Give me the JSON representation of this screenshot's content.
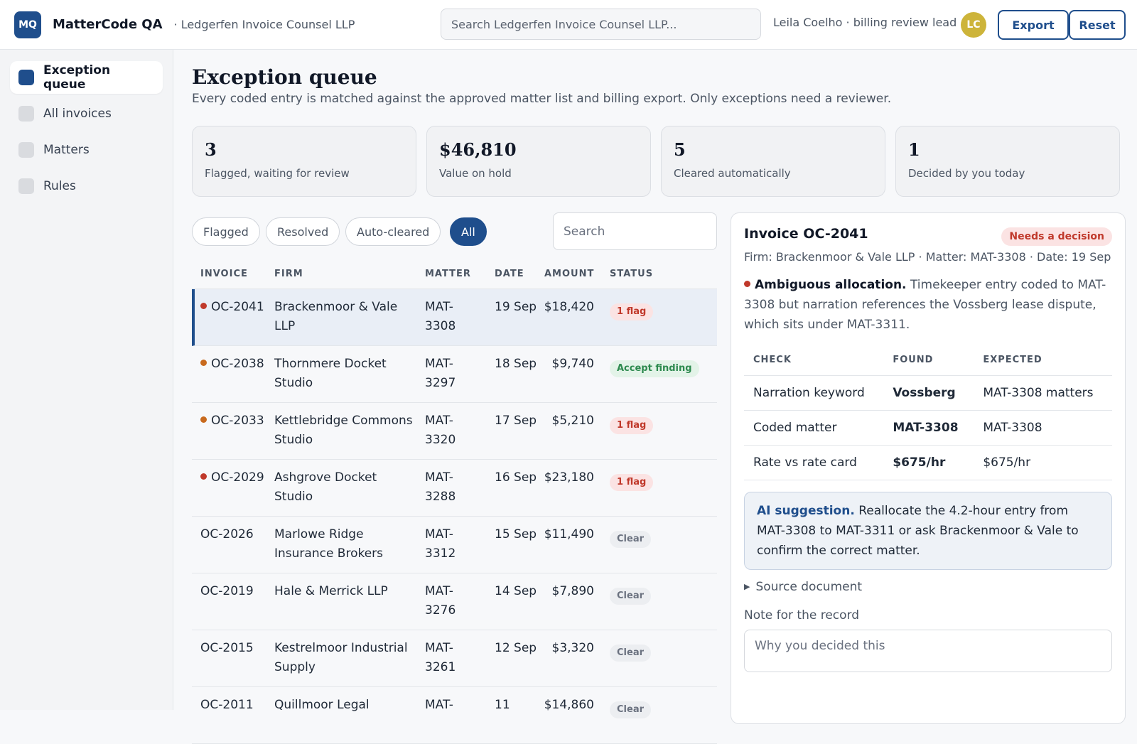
{
  "topbar": {
    "logo": "MQ",
    "app_title": "MatterCode QA",
    "org": "· Ledgerfen Invoice Counsel LLP",
    "search_placeholder": "Search Ledgerfen Invoice Counsel LLP...",
    "user": "Leila Coelho · billing review lead",
    "avatar": "LC",
    "export_label": "Export",
    "reset_label": "Reset"
  },
  "sidebar": {
    "items": [
      {
        "label": "Exception queue"
      },
      {
        "label": "All invoices"
      },
      {
        "label": "Matters"
      },
      {
        "label": "Rules"
      }
    ]
  },
  "page": {
    "title": "Exception queue",
    "subtitle": "Every coded entry is matched against the approved matter list and billing export. Only exceptions need a reviewer."
  },
  "stats": [
    {
      "value": "3",
      "label": "Flagged, waiting for review"
    },
    {
      "value": "$46,810",
      "label": "Value on hold"
    },
    {
      "value": "5",
      "label": "Cleared automatically"
    },
    {
      "value": "1",
      "label": "Decided by you today"
    }
  ],
  "filters": {
    "chips": [
      "Flagged",
      "Resolved",
      "Auto-cleared",
      "All"
    ],
    "search_placeholder": "Search"
  },
  "table": {
    "headers": [
      "INVOICE",
      "FIRM",
      "MATTER",
      "DATE",
      "AMOUNT",
      "STATUS"
    ],
    "rows": [
      {
        "invoice": "OC-2041",
        "firm": "Brackenmoor & Vale LLP",
        "matter": "MAT-3308",
        "date": "19 Sep",
        "amount": "$18,420",
        "status": "1 flag"
      },
      {
        "invoice": "OC-2038",
        "firm": "Thornmere Docket Studio",
        "matter": "MAT-3297",
        "date": "18 Sep",
        "amount": "$9,740",
        "status": "Accept finding"
      },
      {
        "invoice": "OC-2033",
        "firm": "Kettlebridge Commons Studio",
        "matter": "MAT-3320",
        "date": "17 Sep",
        "amount": "$5,210",
        "status": "1 flag"
      },
      {
        "invoice": "OC-2029",
        "firm": "Ashgrove Docket Studio",
        "matter": "MAT-3288",
        "date": "16 Sep",
        "amount": "$23,180",
        "status": "1 flag"
      },
      {
        "invoice": "OC-2026",
        "firm": "Marlowe Ridge Insurance Brokers",
        "matter": "MAT-3312",
        "date": "15 Sep",
        "amount": "$11,490",
        "status": "Clear"
      },
      {
        "invoice": "OC-2019",
        "firm": "Hale & Merrick LLP",
        "matter": "MAT-3276",
        "date": "14 Sep",
        "amount": "$7,890",
        "status": "Clear"
      },
      {
        "invoice": "OC-2015",
        "firm": "Kestrelmoor Industrial Supply",
        "matter": "MAT-3261",
        "date": "12 Sep",
        "amount": "$3,320",
        "status": "Clear"
      },
      {
        "invoice": "OC-2011",
        "firm": "Quillmoor Legal",
        "matter": "MAT-",
        "date": "11",
        "amount": "$14,860",
        "status": "Clear"
      }
    ]
  },
  "detail": {
    "title": "Invoice OC-2041",
    "badge": "Needs a decision",
    "meta": "Firm: Brackenmoor & Vale LLP · Matter: MAT-3308 · Date: 19 Sep",
    "finding_title": "Ambiguous allocation.",
    "finding_text": " Timekeeper entry coded to MAT-3308 but narration references the Vossberg lease dispute, which sits under MAT-3311.",
    "check_headers": [
      "CHECK",
      "FOUND",
      "EXPECTED"
    ],
    "checks": [
      {
        "check": "Narration keyword",
        "found": "Vossberg",
        "expected": "MAT-3308 matters"
      },
      {
        "check": "Coded matter",
        "found": "MAT-3308",
        "expected": "MAT-3308"
      },
      {
        "check": "Rate vs rate card",
        "found": "$675/hr",
        "expected": "$675/hr"
      }
    ],
    "ai_title": "AI suggestion.",
    "ai_text": " Reallocate the 4.2-hour entry from MAT-3308 to MAT-3311 or ask Brackenmoor & Vale to confirm the correct matter.",
    "source_label": "Source document",
    "note_label": "Note for the record",
    "note_placeholder": "Why you decided this"
  },
  "colors": {
    "accent": "#1f4e8c",
    "flag": "#c0392b",
    "ok": "#2e8a4f",
    "warn_dot": "#c86a1e"
  }
}
